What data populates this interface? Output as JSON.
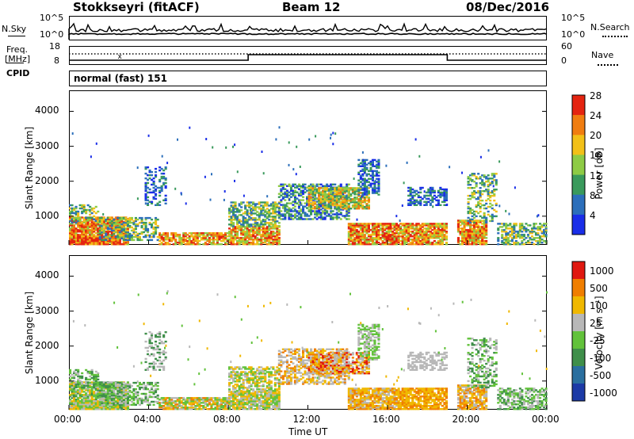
{
  "header": {
    "radar": "Stokkseyri (fitACF)",
    "beam": "Beam 12",
    "date": "08/Dec/2016"
  },
  "nsky_panel": {
    "left_label": "N.Sky",
    "left_ticks": [
      "10^5",
      "10^0"
    ],
    "right_ticks": [
      "10^5",
      "10^0"
    ],
    "right_label": "N.Search"
  },
  "freq_panel": {
    "left_label_1": "Freq.",
    "left_label_2": "[MHz]",
    "left_ticks": [
      "18",
      "8"
    ],
    "right_ticks": [
      "60",
      "0"
    ],
    "right_label": "Nave",
    "cpid_label": "CPID",
    "cpid_value": "normal (fast) 151"
  },
  "x_axis": {
    "ticks": [
      "00:00",
      "04:00",
      "08:00",
      "12:00",
      "16:00",
      "20:00",
      "00:00"
    ],
    "label": "Time UT"
  },
  "chart_data": [
    {
      "type": "heatmap",
      "ylabel": "Slant Range [km]",
      "xlabel": "Time UT",
      "x_ticks": [
        "00:00",
        "04:00",
        "08:00",
        "12:00",
        "16:00",
        "20:00",
        "00:00"
      ],
      "y_ticks": [
        1000,
        2000,
        3000,
        4000
      ],
      "ylim": [
        180,
        4600
      ],
      "xlim_hours": [
        0,
        24
      ],
      "colorbar": {
        "label": "Power [dB]",
        "ticks": [
          "4",
          "8",
          "12",
          "16",
          "20",
          "24",
          "28"
        ],
        "colors": [
          "#1a2ee8",
          "#2c6fbb",
          "#3a9a5c",
          "#8ecb45",
          "#f2c018",
          "#f07d10",
          "#e42410"
        ]
      }
    },
    {
      "type": "heatmap",
      "ylabel": "Slant Range [km]",
      "xlabel": "Time UT",
      "x_ticks": [
        "00:00",
        "04:00",
        "08:00",
        "12:00",
        "16:00",
        "20:00",
        "00:00"
      ],
      "y_ticks": [
        1000,
        2000,
        3000,
        4000
      ],
      "ylim": [
        180,
        4600
      ],
      "xlim_hours": [
        0,
        24
      ],
      "colorbar": {
        "label": "Velocity [m s⁻¹]",
        "ticks": [
          "1000",
          "500",
          "100",
          "25",
          "-25",
          "-100",
          "-500",
          "-1000"
        ],
        "colors": [
          "#1c3aa6",
          "#2a6f9f",
          "#3f8f4a",
          "#62c23b",
          "#b8b8b8",
          "#f0b800",
          "#f07e00",
          "#e01810"
        ]
      }
    }
  ]
}
